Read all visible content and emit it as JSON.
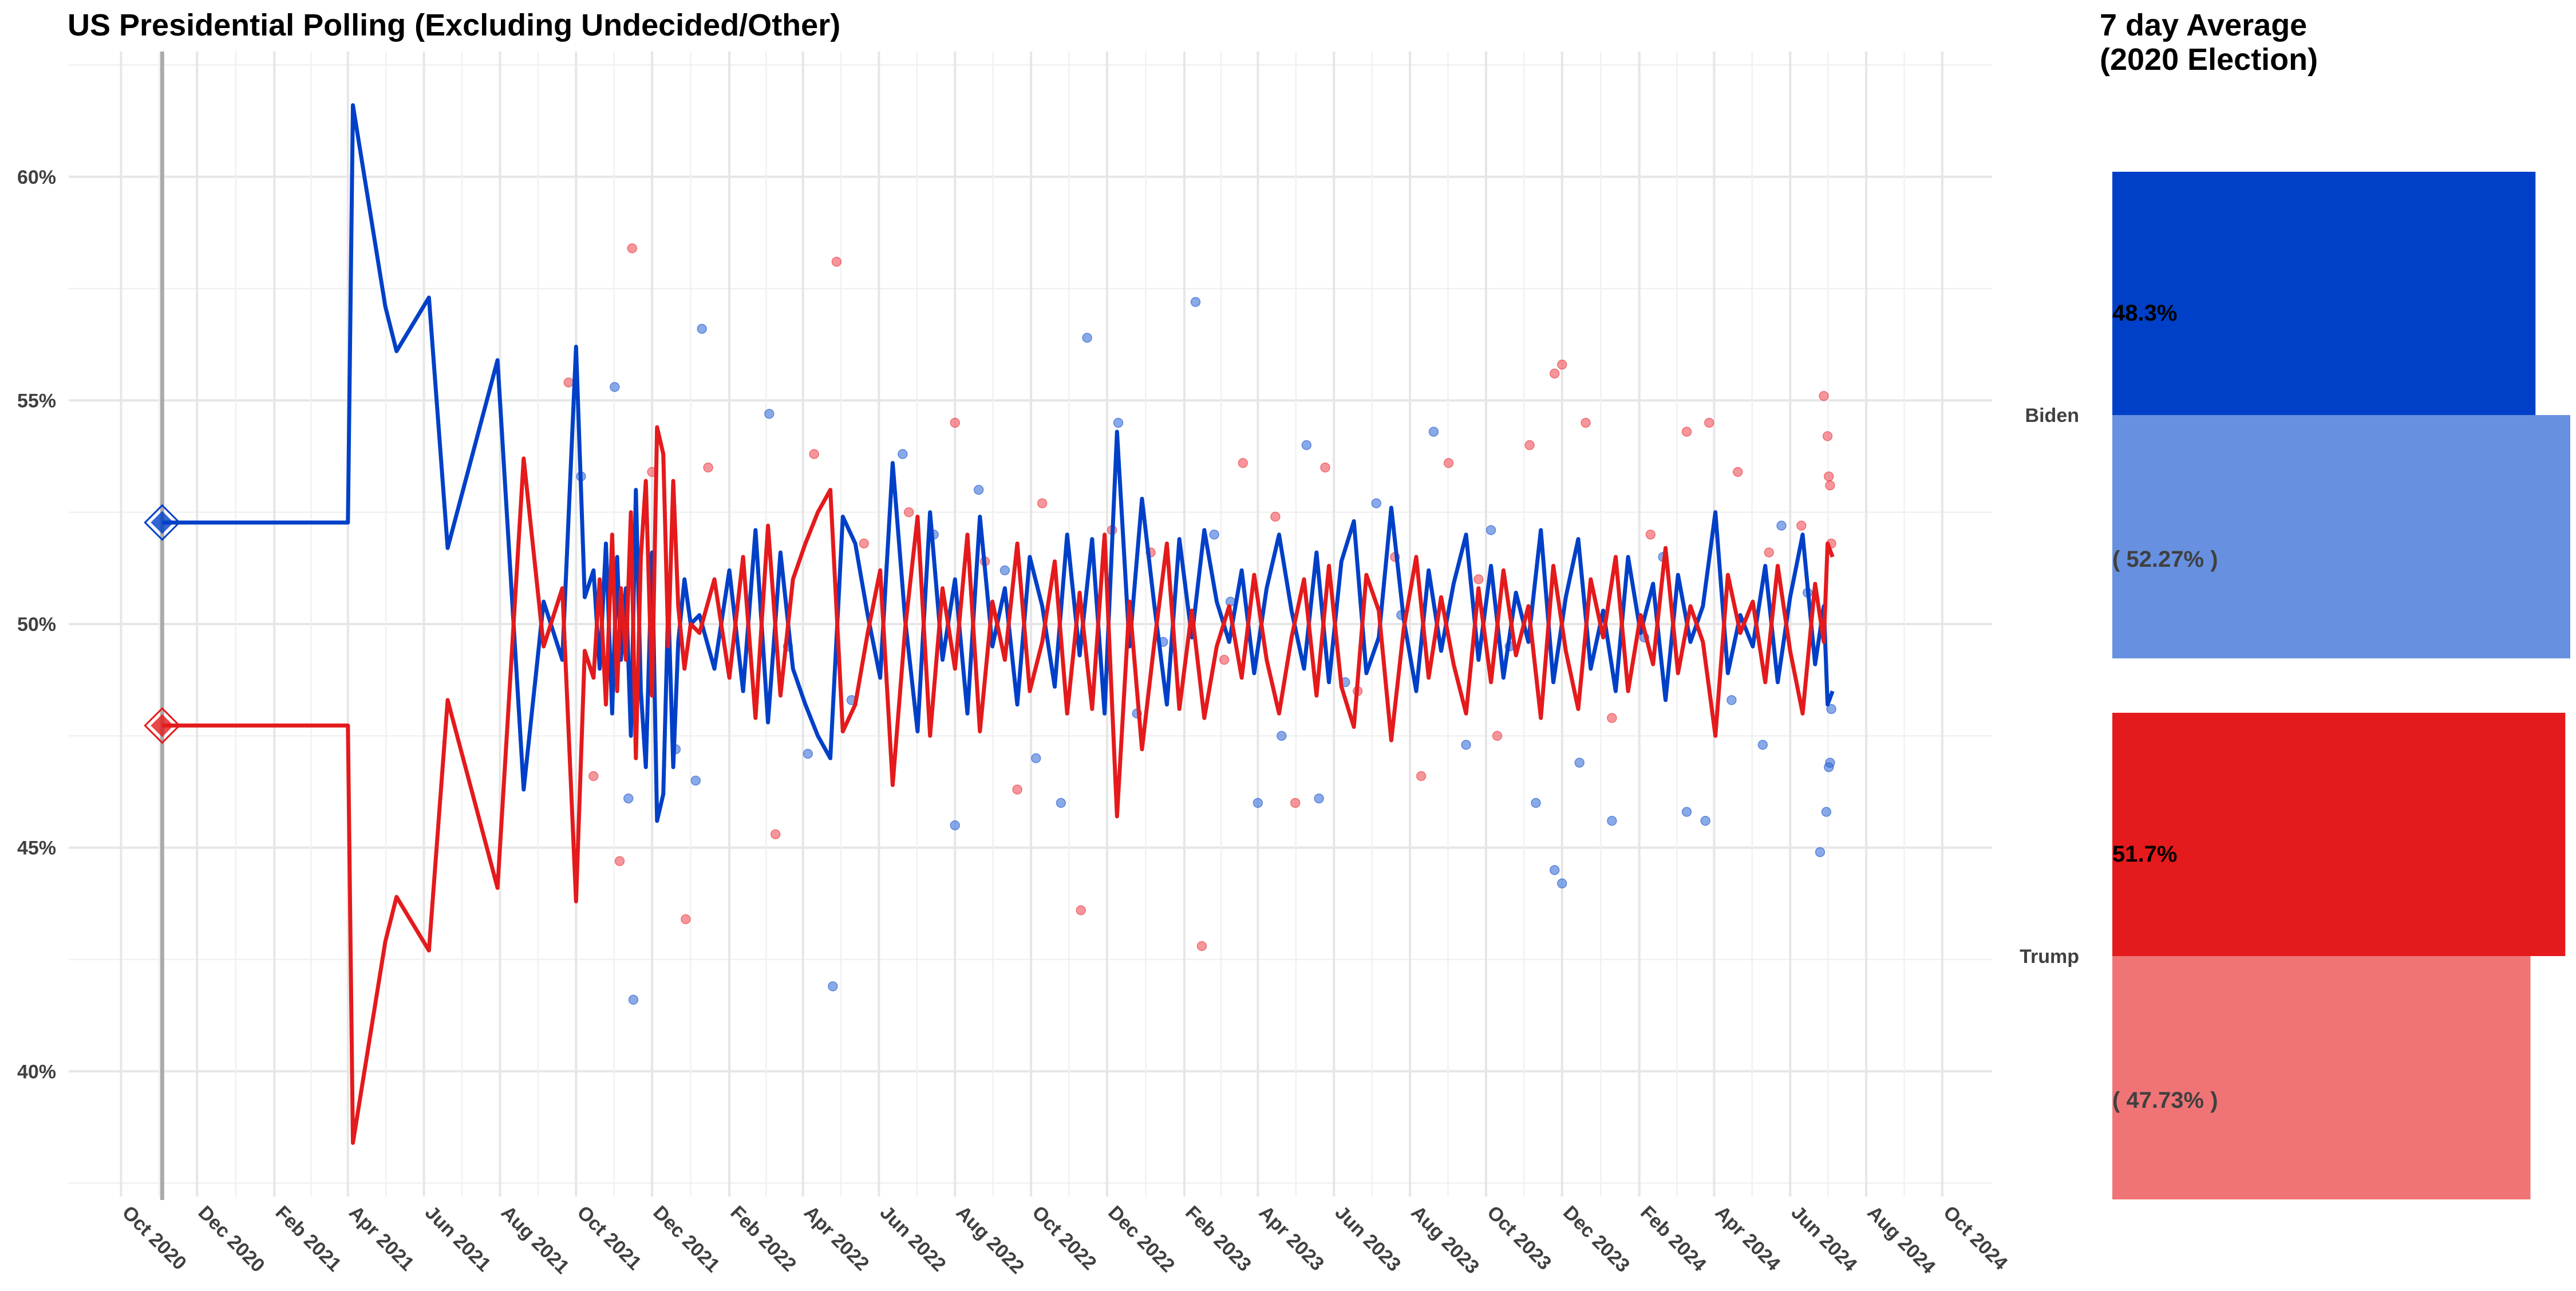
{
  "main_chart": {
    "title": "US Presidential Polling (Excluding Undecided/Other)",
    "y_ticks": [
      "40%",
      "45%",
      "50%",
      "55%",
      "60%"
    ],
    "y_tick_values": [
      40,
      45,
      50,
      55,
      60
    ],
    "ylim": [
      37.2,
      62.8
    ],
    "xlim": [
      "2020-08-20",
      "2024-11-10"
    ],
    "x_ticks": [
      {
        "date": "2020-10-01",
        "label": "Oct 2020"
      },
      {
        "date": "2020-12-01",
        "label": "Dec 2020"
      },
      {
        "date": "2021-02-01",
        "label": "Feb 2021"
      },
      {
        "date": "2021-04-01",
        "label": "Apr 2021"
      },
      {
        "date": "2021-06-01",
        "label": "Jun 2021"
      },
      {
        "date": "2021-08-01",
        "label": "Aug 2021"
      },
      {
        "date": "2021-10-01",
        "label": "Oct 2021"
      },
      {
        "date": "2021-12-01",
        "label": "Dec 2021"
      },
      {
        "date": "2022-02-01",
        "label": "Feb 2022"
      },
      {
        "date": "2022-04-01",
        "label": "Apr 2022"
      },
      {
        "date": "2022-06-01",
        "label": "Jun 2022"
      },
      {
        "date": "2022-08-01",
        "label": "Aug 2022"
      },
      {
        "date": "2022-10-01",
        "label": "Oct 2022"
      },
      {
        "date": "2022-12-01",
        "label": "Dec 2022"
      },
      {
        "date": "2023-02-01",
        "label": "Feb 2023"
      },
      {
        "date": "2023-04-01",
        "label": "Apr 2023"
      },
      {
        "date": "2023-06-01",
        "label": "Jun 2023"
      },
      {
        "date": "2023-08-01",
        "label": "Aug 2023"
      },
      {
        "date": "2023-10-01",
        "label": "Oct 2023"
      },
      {
        "date": "2023-12-01",
        "label": "Dec 2023"
      },
      {
        "date": "2024-02-01",
        "label": "Feb 2024"
      },
      {
        "date": "2024-04-01",
        "label": "Apr 2024"
      },
      {
        "date": "2024-06-01",
        "label": "Jun 2024"
      },
      {
        "date": "2024-08-01",
        "label": "Aug 2024"
      },
      {
        "date": "2024-10-01",
        "label": "Oct 2024"
      }
    ],
    "election_date": "2020-11-03",
    "colors": {
      "biden": "#0040c8",
      "trump": "#e41a1c",
      "biden_point": "#3a6fd8",
      "trump_point": "#f0505a",
      "election_line": "#aaaaaa"
    }
  },
  "chart_data": {
    "type": "line",
    "series": [
      {
        "name": "Biden",
        "election_marker": {
          "x": "2020-11-03",
          "y": 52.27
        },
        "x": [
          "2020-11-03",
          "2021-04-01",
          "2021-04-05",
          "2021-05-01",
          "2021-05-10",
          "2021-06-05",
          "2021-06-20",
          "2021-07-30",
          "2021-08-20",
          "2021-09-05",
          "2021-09-20",
          "2021-10-01",
          "2021-10-08",
          "2021-10-15",
          "2021-10-20",
          "2021-10-25",
          "2021-10-30",
          "2021-11-03",
          "2021-11-06",
          "2021-11-10",
          "2021-11-14",
          "2021-11-18",
          "2021-11-22",
          "2021-11-26",
          "2021-12-01",
          "2021-12-05",
          "2021-12-10",
          "2021-12-14",
          "2021-12-18",
          "2021-12-22",
          "2021-12-27",
          "2022-01-01",
          "2022-01-08",
          "2022-01-20",
          "2022-02-01",
          "2022-02-12",
          "2022-02-22",
          "2022-03-04",
          "2022-03-14",
          "2022-03-24",
          "2022-04-03",
          "2022-04-13",
          "2022-04-23",
          "2022-05-03",
          "2022-05-13",
          "2022-05-23",
          "2022-06-02",
          "2022-06-12",
          "2022-06-22",
          "2022-07-02",
          "2022-07-12",
          "2022-07-22",
          "2022-08-01",
          "2022-08-11",
          "2022-08-21",
          "2022-08-31",
          "2022-09-10",
          "2022-09-20",
          "2022-09-30",
          "2022-10-10",
          "2022-10-20",
          "2022-10-30",
          "2022-11-09",
          "2022-11-19",
          "2022-11-29",
          "2022-12-09",
          "2022-12-19",
          "2022-12-29",
          "2023-01-08",
          "2023-01-18",
          "2023-01-28",
          "2023-02-07",
          "2023-02-17",
          "2023-02-27",
          "2023-03-09",
          "2023-03-19",
          "2023-03-29",
          "2023-04-08",
          "2023-04-18",
          "2023-04-28",
          "2023-05-08",
          "2023-05-18",
          "2023-05-28",
          "2023-06-07",
          "2023-06-17",
          "2023-06-27",
          "2023-07-07",
          "2023-07-17",
          "2023-07-27",
          "2023-08-06",
          "2023-08-16",
          "2023-08-26",
          "2023-09-05",
          "2023-09-15",
          "2023-09-25",
          "2023-10-05",
          "2023-10-15",
          "2023-10-25",
          "2023-11-04",
          "2023-11-14",
          "2023-11-24",
          "2023-12-04",
          "2023-12-14",
          "2023-12-24",
          "2024-01-03",
          "2024-01-13",
          "2024-01-23",
          "2024-02-02",
          "2024-02-12",
          "2024-02-22",
          "2024-03-03",
          "2024-03-13",
          "2024-03-23",
          "2024-04-02",
          "2024-04-12",
          "2024-04-22",
          "2024-05-02",
          "2024-05-12",
          "2024-05-22",
          "2024-06-01",
          "2024-06-11",
          "2024-06-21",
          "2024-06-28",
          "2024-07-01",
          "2024-07-05"
        ],
        "values": [
          52.27,
          52.27,
          61.6,
          57.1,
          56.1,
          57.3,
          51.7,
          55.9,
          46.3,
          50.5,
          49.2,
          56.2,
          50.6,
          51.2,
          49.0,
          51.8,
          48.0,
          51.5,
          49.2,
          50.8,
          47.5,
          53.0,
          48.5,
          46.8,
          51.6,
          45.6,
          46.2,
          50.5,
          46.8,
          49.6,
          51.0,
          50.0,
          50.2,
          49.0,
          51.2,
          48.5,
          52.1,
          47.8,
          51.6,
          49.0,
          48.2,
          47.5,
          47.0,
          52.4,
          51.8,
          50.2,
          48.8,
          53.6,
          50.1,
          47.6,
          52.5,
          49.2,
          51.0,
          48.0,
          52.4,
          49.5,
          50.8,
          48.2,
          51.5,
          50.4,
          48.6,
          52.0,
          49.3,
          51.9,
          48.0,
          54.3,
          49.5,
          52.8,
          50.4,
          48.2,
          51.9,
          49.7,
          52.1,
          50.5,
          49.6,
          51.2,
          48.9,
          50.8,
          52.0,
          50.3,
          49.0,
          51.6,
          48.7,
          51.4,
          52.3,
          48.9,
          49.7,
          52.6,
          50.1,
          48.5,
          51.2,
          49.4,
          50.9,
          52.0,
          49.2,
          51.3,
          48.8,
          50.7,
          49.6,
          52.1,
          48.7,
          50.6,
          51.9,
          49.0,
          50.3,
          48.5,
          51.5,
          49.8,
          50.9,
          48.3,
          51.1,
          49.6,
          50.4,
          52.5,
          48.9,
          50.2,
          49.5,
          51.3,
          48.7,
          50.6,
          52.0,
          49.1,
          50.4,
          48.2,
          48.5
        ]
      },
      {
        "name": "Trump",
        "election_marker": {
          "x": "2020-11-03",
          "y": 47.73
        },
        "x": [
          "2020-11-03",
          "2021-04-01",
          "2021-04-05",
          "2021-05-01",
          "2021-05-10",
          "2021-06-05",
          "2021-06-20",
          "2021-07-30",
          "2021-08-20",
          "2021-09-05",
          "2021-09-20",
          "2021-10-01",
          "2021-10-08",
          "2021-10-15",
          "2021-10-20",
          "2021-10-25",
          "2021-10-30",
          "2021-11-03",
          "2021-11-06",
          "2021-11-10",
          "2021-11-14",
          "2021-11-18",
          "2021-11-22",
          "2021-11-26",
          "2021-12-01",
          "2021-12-05",
          "2021-12-10",
          "2021-12-14",
          "2021-12-18",
          "2021-12-22",
          "2021-12-27",
          "2022-01-01",
          "2022-01-08",
          "2022-01-20",
          "2022-02-01",
          "2022-02-12",
          "2022-02-22",
          "2022-03-04",
          "2022-03-14",
          "2022-03-24",
          "2022-04-03",
          "2022-04-13",
          "2022-04-23",
          "2022-05-03",
          "2022-05-13",
          "2022-05-23",
          "2022-06-02",
          "2022-06-12",
          "2022-06-22",
          "2022-07-02",
          "2022-07-12",
          "2022-07-22",
          "2022-08-01",
          "2022-08-11",
          "2022-08-21",
          "2022-08-31",
          "2022-09-10",
          "2022-09-20",
          "2022-09-30",
          "2022-10-10",
          "2022-10-20",
          "2022-10-30",
          "2022-11-09",
          "2022-11-19",
          "2022-11-29",
          "2022-12-09",
          "2022-12-19",
          "2022-12-29",
          "2023-01-08",
          "2023-01-18",
          "2023-01-28",
          "2023-02-07",
          "2023-02-17",
          "2023-02-27",
          "2023-03-09",
          "2023-03-19",
          "2023-03-29",
          "2023-04-08",
          "2023-04-18",
          "2023-04-28",
          "2023-05-08",
          "2023-05-18",
          "2023-05-28",
          "2023-06-07",
          "2023-06-17",
          "2023-06-27",
          "2023-07-07",
          "2023-07-17",
          "2023-07-27",
          "2023-08-06",
          "2023-08-16",
          "2023-08-26",
          "2023-09-05",
          "2023-09-15",
          "2023-09-25",
          "2023-10-05",
          "2023-10-15",
          "2023-10-25",
          "2023-11-04",
          "2023-11-14",
          "2023-11-24",
          "2023-12-04",
          "2023-12-14",
          "2023-12-24",
          "2024-01-03",
          "2024-01-13",
          "2024-01-23",
          "2024-02-02",
          "2024-02-12",
          "2024-02-22",
          "2024-03-03",
          "2024-03-13",
          "2024-03-23",
          "2024-04-02",
          "2024-04-12",
          "2024-04-22",
          "2024-05-02",
          "2024-05-12",
          "2024-05-22",
          "2024-06-01",
          "2024-06-11",
          "2024-06-21",
          "2024-06-28",
          "2024-07-01",
          "2024-07-05"
        ],
        "values": [
          47.73,
          47.73,
          38.4,
          42.9,
          43.9,
          42.7,
          48.3,
          44.1,
          53.7,
          49.5,
          50.8,
          43.8,
          49.4,
          48.8,
          51.0,
          48.2,
          52.0,
          48.5,
          50.8,
          49.2,
          52.5,
          47.0,
          51.5,
          53.2,
          48.4,
          54.4,
          53.8,
          49.5,
          53.2,
          50.4,
          49.0,
          50.0,
          49.8,
          51.0,
          48.8,
          51.5,
          47.9,
          52.2,
          48.4,
          51.0,
          51.8,
          52.5,
          53.0,
          47.6,
          48.2,
          49.8,
          51.2,
          46.4,
          49.9,
          52.4,
          47.5,
          50.8,
          49.0,
          52.0,
          47.6,
          50.5,
          49.2,
          51.8,
          48.5,
          49.6,
          51.4,
          48.0,
          50.7,
          48.1,
          52.0,
          45.7,
          50.5,
          47.2,
          49.6,
          51.8,
          48.1,
          50.3,
          47.9,
          49.5,
          50.4,
          48.8,
          51.1,
          49.2,
          48.0,
          49.7,
          51.0,
          48.4,
          51.3,
          48.6,
          47.7,
          51.1,
          50.3,
          47.4,
          49.9,
          51.5,
          48.8,
          50.6,
          49.1,
          48.0,
          50.8,
          48.7,
          51.2,
          49.3,
          50.4,
          47.9,
          51.3,
          49.4,
          48.1,
          51.0,
          49.7,
          51.5,
          48.5,
          50.2,
          49.1,
          51.7,
          48.9,
          50.4,
          49.6,
          47.5,
          51.1,
          49.8,
          50.5,
          48.7,
          51.3,
          49.4,
          48.0,
          50.9,
          49.6,
          51.8,
          51.5
        ]
      }
    ],
    "scatter_biden": [
      [
        "2021-10-05",
        53.3
      ],
      [
        "2021-11-01",
        55.3
      ],
      [
        "2021-11-12",
        46.1
      ],
      [
        "2021-11-16",
        41.6
      ],
      [
        "2021-12-20",
        47.2
      ],
      [
        "2022-01-10",
        56.6
      ],
      [
        "2022-01-05",
        46.5
      ],
      [
        "2022-03-05",
        54.7
      ],
      [
        "2022-03-20",
        49.5
      ],
      [
        "2022-04-25",
        41.9
      ],
      [
        "2022-04-05",
        47.1
      ],
      [
        "2022-05-10",
        48.3
      ],
      [
        "2022-06-20",
        53.8
      ],
      [
        "2022-07-15",
        52.0
      ],
      [
        "2022-08-01",
        45.5
      ],
      [
        "2022-08-20",
        53.0
      ],
      [
        "2022-09-10",
        51.2
      ],
      [
        "2022-10-05",
        47.0
      ],
      [
        "2022-10-25",
        46.0
      ],
      [
        "2022-11-15",
        56.4
      ],
      [
        "2022-12-10",
        54.5
      ],
      [
        "2022-12-25",
        48.0
      ],
      [
        "2023-01-15",
        49.6
      ],
      [
        "2023-02-10",
        57.2
      ],
      [
        "2023-02-25",
        52.0
      ],
      [
        "2023-03-10",
        50.5
      ],
      [
        "2023-04-01",
        46.0
      ],
      [
        "2023-04-20",
        47.5
      ],
      [
        "2023-05-10",
        54.0
      ],
      [
        "2023-05-20",
        46.1
      ],
      [
        "2023-06-10",
        48.7
      ],
      [
        "2023-07-05",
        52.7
      ],
      [
        "2023-07-25",
        50.2
      ],
      [
        "2023-08-20",
        54.3
      ],
      [
        "2023-09-15",
        47.3
      ],
      [
        "2023-10-05",
        52.1
      ],
      [
        "2023-10-20",
        49.5
      ],
      [
        "2023-11-10",
        46.0
      ],
      [
        "2023-11-25",
        44.5
      ],
      [
        "2023-12-01",
        44.2
      ],
      [
        "2023-12-15",
        46.9
      ],
      [
        "2024-01-10",
        45.6
      ],
      [
        "2024-02-05",
        49.7
      ],
      [
        "2024-02-20",
        51.5
      ],
      [
        "2024-03-10",
        45.8
      ],
      [
        "2024-03-25",
        45.6
      ],
      [
        "2024-04-15",
        48.3
      ],
      [
        "2024-05-10",
        47.3
      ],
      [
        "2024-05-25",
        52.2
      ],
      [
        "2024-06-15",
        50.7
      ],
      [
        "2024-06-25",
        44.9
      ],
      [
        "2024-06-30",
        45.8
      ],
      [
        "2024-07-02",
        46.8
      ],
      [
        "2024-07-03",
        46.9
      ],
      [
        "2024-07-04",
        48.1
      ]
    ],
    "scatter_trump": [
      [
        "2021-09-25",
        55.4
      ],
      [
        "2021-10-15",
        46.6
      ],
      [
        "2021-11-05",
        44.7
      ],
      [
        "2021-11-15",
        58.4
      ],
      [
        "2021-12-01",
        53.4
      ],
      [
        "2021-12-28",
        43.4
      ],
      [
        "2022-01-15",
        53.5
      ],
      [
        "2022-03-10",
        45.3
      ],
      [
        "2022-04-10",
        53.8
      ],
      [
        "2022-04-28",
        58.1
      ],
      [
        "2022-05-20",
        51.8
      ],
      [
        "2022-06-25",
        52.5
      ],
      [
        "2022-08-01",
        54.5
      ],
      [
        "2022-08-25",
        51.4
      ],
      [
        "2022-09-20",
        46.3
      ],
      [
        "2022-10-10",
        52.7
      ],
      [
        "2022-11-10",
        43.6
      ],
      [
        "2022-12-05",
        52.1
      ],
      [
        "2023-01-05",
        51.6
      ],
      [
        "2023-02-15",
        42.8
      ],
      [
        "2023-03-05",
        49.2
      ],
      [
        "2023-03-20",
        53.6
      ],
      [
        "2023-04-15",
        52.4
      ],
      [
        "2023-05-01",
        46.0
      ],
      [
        "2023-05-25",
        53.5
      ],
      [
        "2023-06-20",
        48.5
      ],
      [
        "2023-07-20",
        51.5
      ],
      [
        "2023-08-10",
        46.6
      ],
      [
        "2023-09-01",
        53.6
      ],
      [
        "2023-09-25",
        51.0
      ],
      [
        "2023-10-10",
        47.5
      ],
      [
        "2023-11-05",
        54.0
      ],
      [
        "2023-11-25",
        55.6
      ],
      [
        "2023-12-01",
        55.8
      ],
      [
        "2023-12-20",
        54.5
      ],
      [
        "2024-01-10",
        47.9
      ],
      [
        "2024-02-10",
        52.0
      ],
      [
        "2024-03-10",
        54.3
      ],
      [
        "2024-03-28",
        54.5
      ],
      [
        "2024-04-20",
        53.4
      ],
      [
        "2024-05-15",
        51.6
      ],
      [
        "2024-06-10",
        52.2
      ],
      [
        "2024-06-28",
        55.1
      ],
      [
        "2024-07-01",
        54.2
      ],
      [
        "2024-07-02",
        53.3
      ],
      [
        "2024-07-03",
        53.1
      ],
      [
        "2024-07-04",
        51.8
      ]
    ],
    "ylabel": "",
    "xlabel": ""
  },
  "side_panel": {
    "title_line1": "7 day Average",
    "title_line2": "(2020 Election)",
    "categories": [
      {
        "name": "Biden",
        "avg_label": "48.3%",
        "avg_value": 48.3,
        "election_label": "( 52.27% )",
        "election_value": 52.27,
        "color_avg": "#0040c8",
        "color_election": "#6790e0"
      },
      {
        "name": "Trump",
        "avg_label": "51.7%",
        "avg_value": 51.7,
        "election_label": "( 47.73% )",
        "election_value": 47.73,
        "color_avg": "#e41a1c",
        "color_election": "#f07476"
      }
    ]
  }
}
